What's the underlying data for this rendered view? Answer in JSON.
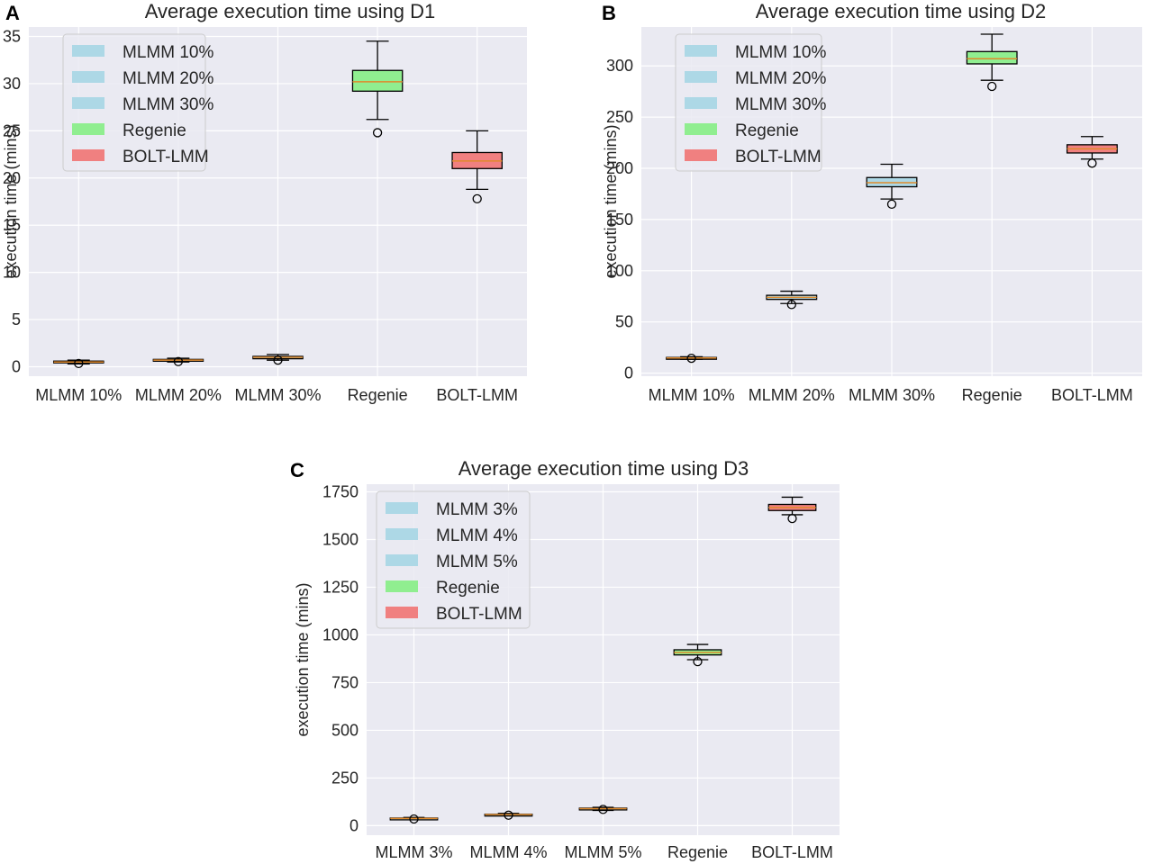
{
  "chart_data": [
    {
      "type": "box",
      "panel_label": "A",
      "title": "Average execution time using D1",
      "ylabel": "execution time (mins)",
      "ylim": [
        -1,
        36
      ],
      "yticks": [
        0,
        5,
        10,
        15,
        20,
        25,
        30,
        35
      ],
      "categories": [
        "MLMM 10%",
        "MLMM 20%",
        "MLMM 30%",
        "Regenie",
        "BOLT-LMM"
      ],
      "colors": [
        "#add8e6",
        "#add8e6",
        "#add8e6",
        "#90ee90",
        "#f08080"
      ],
      "legend": [
        "MLMM 10%",
        "MLMM 20%",
        "MLMM 30%",
        "Regenie",
        "BOLT-LMM"
      ],
      "legend_position": "upper-left",
      "boxes": [
        {
          "whislo": 0.3,
          "q1": 0.45,
          "med": 0.5,
          "q3": 0.6,
          "whishi": 0.7,
          "fliers": [
            0.35
          ]
        },
        {
          "whislo": 0.5,
          "q1": 0.62,
          "med": 0.7,
          "q3": 0.78,
          "whishi": 0.9,
          "fliers": [
            0.55
          ]
        },
        {
          "whislo": 0.7,
          "q1": 0.85,
          "med": 1.0,
          "q3": 1.1,
          "whishi": 1.3,
          "fliers": [
            0.7
          ]
        },
        {
          "whislo": 26.2,
          "q1": 29.2,
          "med": 30.2,
          "q3": 31.4,
          "whishi": 34.5,
          "fliers": [
            24.8
          ]
        },
        {
          "whislo": 18.8,
          "q1": 21.0,
          "med": 21.8,
          "q3": 22.7,
          "whishi": 25.0,
          "fliers": [
            17.8
          ]
        }
      ]
    },
    {
      "type": "box",
      "panel_label": "B",
      "title": "Average execution time using D2",
      "ylabel": "execution time (mins)",
      "ylim": [
        -3,
        338
      ],
      "yticks": [
        0,
        50,
        100,
        150,
        200,
        250,
        300
      ],
      "categories": [
        "MLMM 10%",
        "MLMM 20%",
        "MLMM 30%",
        "Regenie",
        "BOLT-LMM"
      ],
      "colors": [
        "#add8e6",
        "#add8e6",
        "#add8e6",
        "#90ee90",
        "#f08080"
      ],
      "legend": [
        "MLMM 10%",
        "MLMM 20%",
        "MLMM 30%",
        "Regenie",
        "BOLT-LMM"
      ],
      "legend_position": "upper-left",
      "boxes": [
        {
          "whislo": 13.5,
          "q1": 14.3,
          "med": 14.8,
          "q3": 15.3,
          "whishi": 16.0,
          "fliers": [
            14.5
          ]
        },
        {
          "whislo": 68,
          "q1": 72,
          "med": 74,
          "q3": 76,
          "whishi": 80,
          "fliers": [
            67
          ]
        },
        {
          "whislo": 170,
          "q1": 182,
          "med": 186,
          "q3": 191,
          "whishi": 204,
          "fliers": [
            165
          ]
        },
        {
          "whislo": 286,
          "q1": 302,
          "med": 307,
          "q3": 314,
          "whishi": 331,
          "fliers": [
            280
          ]
        },
        {
          "whislo": 209,
          "q1": 215,
          "med": 219,
          "q3": 223,
          "whishi": 231,
          "fliers": [
            205
          ]
        }
      ]
    },
    {
      "type": "box",
      "panel_label": "C",
      "title": "Average execution time using D3",
      "ylabel": "execution time (mins)",
      "ylim": [
        -50,
        1790
      ],
      "yticks": [
        0,
        250,
        500,
        750,
        1000,
        1250,
        1500,
        1750
      ],
      "categories": [
        "MLMM 3%",
        "MLMM 4%",
        "MLMM 5%",
        "Regenie",
        "BOLT-LMM"
      ],
      "colors": [
        "#add8e6",
        "#add8e6",
        "#add8e6",
        "#90ee90",
        "#f08080"
      ],
      "legend": [
        "MLMM 3%",
        "MLMM 4%",
        "MLMM 5%",
        "Regenie",
        "BOLT-LMM"
      ],
      "legend_position": "upper-left",
      "boxes": [
        {
          "whislo": 32,
          "q1": 36,
          "med": 38,
          "q3": 40,
          "whishi": 43,
          "fliers": [
            35
          ]
        },
        {
          "whislo": 52,
          "q1": 56,
          "med": 58,
          "q3": 60,
          "whishi": 64,
          "fliers": [
            55
          ]
        },
        {
          "whislo": 80,
          "q1": 86,
          "med": 89,
          "q3": 92,
          "whishi": 96,
          "fliers": [
            85
          ]
        },
        {
          "whislo": 870,
          "q1": 895,
          "med": 908,
          "q3": 922,
          "whishi": 950,
          "fliers": [
            860
          ]
        },
        {
          "whislo": 1630,
          "q1": 1652,
          "med": 1668,
          "q3": 1684,
          "whishi": 1722,
          "fliers": [
            1610
          ]
        }
      ]
    }
  ]
}
